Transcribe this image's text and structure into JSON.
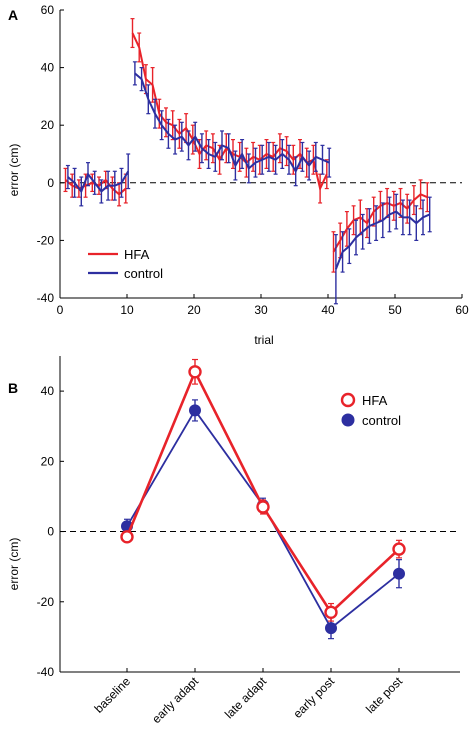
{
  "chart_data": [
    {
      "panel": "A",
      "type": "line",
      "xlabel": "trial",
      "ylabel": "error (cm)",
      "xlim": [
        0,
        60
      ],
      "ylim": [
        -40,
        60
      ],
      "xticks": [
        "0",
        "10",
        "20",
        "30",
        "40",
        "50",
        "60"
      ],
      "yticks": [
        "-40",
        "-20",
        "0",
        "20",
        "40",
        "60"
      ],
      "xtick_values": [
        0,
        10,
        20,
        30,
        40,
        50,
        60
      ],
      "ytick_values": [
        -40,
        -20,
        0,
        20,
        40,
        60
      ],
      "reference_line": 0,
      "legend": "lower-left",
      "series": [
        {
          "name": "HFA",
          "color": "#e8232a",
          "segments": [
            {
              "x": [
                1,
                2,
                3,
                4,
                5,
                6,
                7,
                8,
                9,
                10
              ],
              "y": [
                1,
                -1,
                -2,
                -1,
                0,
                -1,
                1,
                -2,
                -4,
                -2
              ],
              "err": [
                4,
                4,
                3,
                4,
                3,
                3,
                3,
                4,
                4,
                5
              ]
            },
            {
              "x": [
                11,
                12,
                13,
                14,
                15,
                16,
                17,
                18,
                19,
                20,
                21,
                22,
                23,
                24,
                25,
                26,
                27,
                28,
                29,
                30,
                31,
                32,
                33,
                34,
                35,
                36,
                37,
                38,
                39,
                40
              ],
              "y": [
                52,
                47,
                36,
                34,
                24,
                21,
                20,
                17,
                19,
                15,
                10,
                13,
                12,
                8,
                12,
                10,
                9,
                7,
                9,
                8,
                10,
                9,
                12,
                11,
                8,
                10,
                7,
                8,
                -2,
                3
              ],
              "err": [
                5,
                5,
                5,
                6,
                5,
                5,
                5,
                5,
                5,
                5,
                5,
                5,
                5,
                5,
                5,
                5,
                5,
                5,
                5,
                5,
                5,
                5,
                5,
                5,
                5,
                5,
                5,
                5,
                5,
                5
              ]
            },
            {
              "x": [
                41,
                42,
                43,
                44,
                45,
                46,
                47,
                48,
                49,
                50,
                51,
                52,
                53,
                54,
                55
              ],
              "y": [
                -24,
                -20,
                -16,
                -13,
                -12,
                -14,
                -10,
                -8,
                -7,
                -8,
                -7,
                -9,
                -6,
                -4,
                -5
              ],
              "err": [
                7,
                6,
                6,
                5,
                6,
                5,
                5,
                5,
                5,
                5,
                5,
                5,
                5,
                5,
                5
              ]
            }
          ]
        },
        {
          "name": "control",
          "color": "#2d2fa0",
          "segments": [
            {
              "x": [
                1,
                2,
                3,
                4,
                5,
                6,
                7,
                8,
                9,
                10
              ],
              "y": [
                2,
                0,
                -3,
                3,
                0,
                -3,
                -1,
                -1,
                0,
                4
              ],
              "err": [
                4,
                5,
                5,
                4,
                4,
                4,
                5,
                5,
                5,
                6
              ]
            },
            {
              "x": [
                11,
                12,
                13,
                14,
                15,
                16,
                17,
                18,
                19,
                20,
                21,
                22,
                23,
                24,
                25,
                26,
                27,
                28,
                29,
                30,
                31,
                32,
                33,
                34,
                35,
                36,
                37,
                38,
                39,
                40
              ],
              "y": [
                38,
                36,
                29,
                24,
                20,
                17,
                15,
                16,
                13,
                16,
                12,
                10,
                9,
                13,
                12,
                6,
                10,
                5,
                7,
                8,
                9,
                8,
                10,
                8,
                4,
                9,
                6,
                9,
                8,
                7
              ],
              "err": [
                4,
                4,
                5,
                5,
                5,
                5,
                5,
                5,
                5,
                5,
                5,
                5,
                5,
                5,
                5,
                5,
                5,
                5,
                5,
                5,
                5,
                5,
                5,
                5,
                5,
                5,
                5,
                5,
                5,
                5
              ]
            },
            {
              "x": [
                41,
                42,
                43,
                44,
                45,
                46,
                47,
                48,
                49,
                50,
                51,
                52,
                53,
                54,
                55
              ],
              "y": [
                -30,
                -24,
                -22,
                -19,
                -17,
                -15,
                -14,
                -13,
                -11,
                -10,
                -12,
                -12,
                -14,
                -12,
                -11
              ],
              "err": [
                12,
                7,
                6,
                6,
                6,
                6,
                6,
                6,
                6,
                6,
                6,
                6,
                6,
                6,
                6
              ]
            }
          ]
        }
      ]
    },
    {
      "panel": "B",
      "type": "line",
      "xlabel": "",
      "ylabel": "error (cm)",
      "ylim": [
        -40,
        50
      ],
      "yticks": [
        "-40",
        "-20",
        "0",
        "20",
        "40"
      ],
      "ytick_values": [
        -40,
        -20,
        0,
        20,
        40
      ],
      "categories": [
        "baseline",
        "early adapt",
        "late adapt",
        "early post",
        "late post"
      ],
      "reference_line": 0,
      "legend": "top-right",
      "series": [
        {
          "name": "HFA",
          "color": "#e8232a",
          "marker": "open-circle",
          "values": [
            -1.5,
            45.5,
            7,
            -23,
            -5
          ],
          "err": [
            1.5,
            3.5,
            2,
            2.5,
            2.5
          ]
        },
        {
          "name": "control",
          "color": "#2d2fa0",
          "marker": "filled-circle",
          "values": [
            1.5,
            34.5,
            7.5,
            -27.5,
            -12
          ],
          "err": [
            2,
            3,
            2,
            3,
            4
          ]
        }
      ]
    }
  ],
  "panel_labels": [
    "A",
    "B"
  ]
}
